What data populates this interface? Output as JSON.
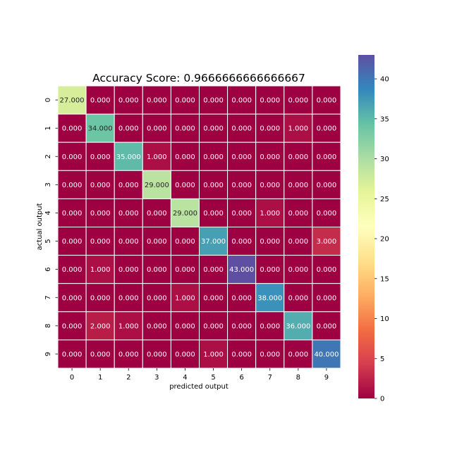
{
  "chart_data": {
    "type": "heatmap",
    "title": "Accuracy Score: 0.9666666666666667",
    "xlabel": "predicted output",
    "ylabel": "actual output",
    "x_categories": [
      "0",
      "1",
      "2",
      "3",
      "4",
      "5",
      "6",
      "7",
      "8",
      "9"
    ],
    "y_categories": [
      "0",
      "1",
      "2",
      "3",
      "4",
      "5",
      "6",
      "7",
      "8",
      "9"
    ],
    "values": [
      [
        27,
        0,
        0,
        0,
        0,
        0,
        0,
        0,
        0,
        0
      ],
      [
        0,
        34,
        0,
        0,
        0,
        0,
        0,
        0,
        1,
        0
      ],
      [
        0,
        0,
        35,
        1,
        0,
        0,
        0,
        0,
        0,
        0
      ],
      [
        0,
        0,
        0,
        29,
        0,
        0,
        0,
        0,
        0,
        0
      ],
      [
        0,
        0,
        0,
        0,
        29,
        0,
        0,
        1,
        0,
        0
      ],
      [
        0,
        0,
        0,
        0,
        0,
        37,
        0,
        0,
        0,
        3
      ],
      [
        0,
        1,
        0,
        0,
        0,
        0,
        43,
        0,
        0,
        0
      ],
      [
        0,
        0,
        0,
        0,
        1,
        0,
        0,
        38,
        0,
        0
      ],
      [
        0,
        2,
        1,
        0,
        0,
        0,
        0,
        0,
        36,
        0
      ],
      [
        0,
        0,
        0,
        0,
        0,
        1,
        0,
        0,
        0,
        40
      ]
    ],
    "annotation_format": "3 decimals",
    "colormap": "Spectral",
    "vmin": 0,
    "vmax": 43,
    "colorbar_ticks": [
      0,
      5,
      10,
      15,
      20,
      25,
      30,
      35,
      40
    ],
    "colors": {
      "cell_border": "#ffffff",
      "text_dark": "#262626",
      "text_light": "#ffffff"
    }
  }
}
